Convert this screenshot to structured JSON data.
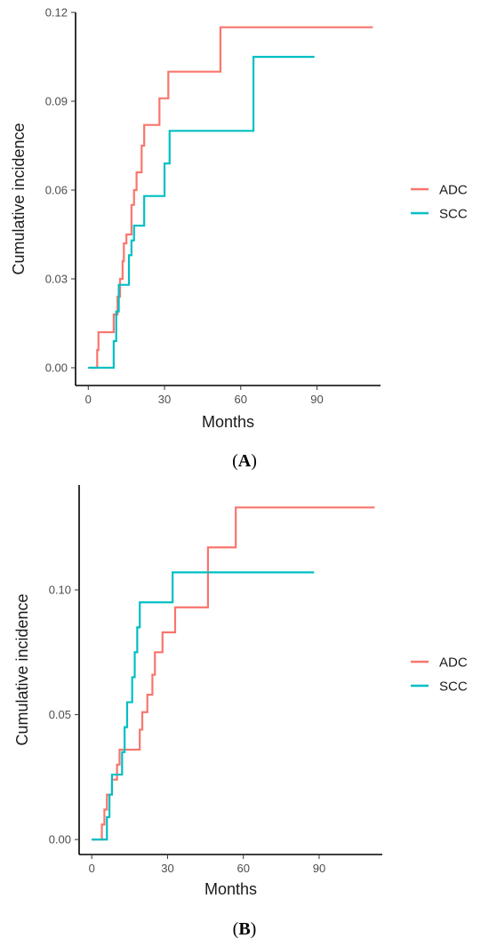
{
  "chart_data": [
    {
      "type": "line",
      "panel_label": "A",
      "xlabel": "Months",
      "ylabel": "Cumulative incidence",
      "xlim": [
        -5,
        115
      ],
      "ylim": [
        -0.006,
        0.12
      ],
      "xticks": [
        0,
        30,
        60,
        90
      ],
      "yticks": [
        0.0,
        0.03,
        0.06,
        0.09,
        0.12
      ],
      "ytick_labels": [
        "0.00",
        "0.03",
        "0.06",
        "0.09",
        "0.12"
      ],
      "grid": false,
      "legend_position": "right",
      "series": [
        {
          "name": "ADC",
          "color": "#F8766D",
          "step": true,
          "x": [
            0,
            3.5,
            4,
            10,
            11.5,
            12.5,
            13.5,
            14,
            15,
            17,
            18,
            19,
            21,
            22,
            28,
            30,
            31.5,
            52,
            112
          ],
          "y": [
            0.0,
            0.006,
            0.012,
            0.018,
            0.024,
            0.03,
            0.036,
            0.042,
            0.045,
            0.055,
            0.06,
            0.066,
            0.075,
            0.082,
            0.091,
            0.091,
            0.1,
            0.115,
            0.115
          ]
        },
        {
          "name": "SCC",
          "color": "#00BFC4",
          "step": true,
          "x": [
            0,
            10,
            11,
            12,
            16,
            17,
            18,
            22,
            30,
            32,
            65,
            89
          ],
          "y": [
            0.0,
            0.009,
            0.019,
            0.028,
            0.038,
            0.043,
            0.048,
            0.058,
            0.069,
            0.08,
            0.105,
            0.105
          ]
        }
      ]
    },
    {
      "type": "line",
      "panel_label": "B",
      "xlabel": "Months",
      "ylabel": "Cumulative incidence",
      "xlim": [
        -5,
        115
      ],
      "ylim": [
        -0.006,
        0.142
      ],
      "xticks": [
        0,
        30,
        60,
        90
      ],
      "yticks": [
        0.0,
        0.05,
        0.1
      ],
      "ytick_labels": [
        "0.00",
        "0.05",
        "0.10"
      ],
      "grid": false,
      "legend_position": "right",
      "series": [
        {
          "name": "ADC",
          "color": "#F8766D",
          "step": true,
          "x": [
            0,
            4,
            5,
            6,
            8,
            10,
            11,
            18,
            19,
            20,
            22,
            24,
            25,
            26,
            28,
            31,
            33,
            46,
            57,
            112
          ],
          "y": [
            0.0,
            0.006,
            0.012,
            0.018,
            0.024,
            0.03,
            0.036,
            0.036,
            0.044,
            0.051,
            0.058,
            0.066,
            0.075,
            0.075,
            0.083,
            0.083,
            0.093,
            0.117,
            0.133,
            0.133
          ]
        },
        {
          "name": "SCC",
          "color": "#00BFC4",
          "step": true,
          "x": [
            0,
            6,
            7,
            8,
            12,
            13,
            14,
            16,
            17,
            18,
            19,
            31,
            32,
            88
          ],
          "y": [
            0.0,
            0.009,
            0.018,
            0.026,
            0.035,
            0.045,
            0.055,
            0.065,
            0.075,
            0.085,
            0.095,
            0.095,
            0.107,
            0.107
          ]
        }
      ]
    }
  ]
}
